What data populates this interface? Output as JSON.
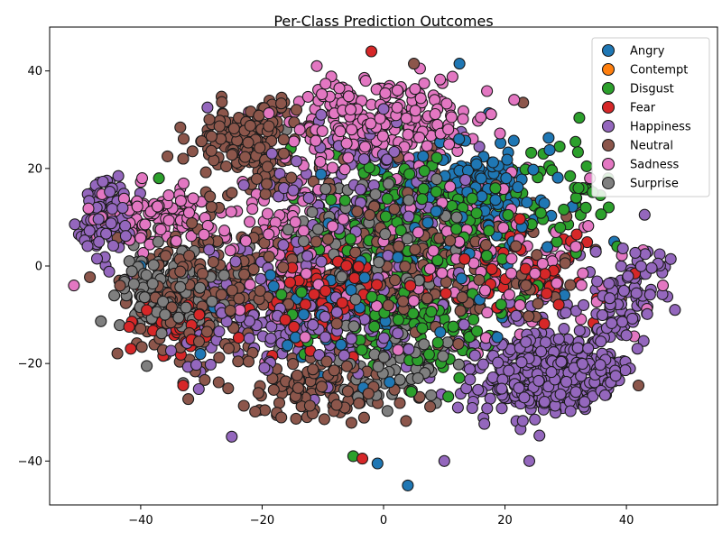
{
  "chart_data": {
    "type": "scatter",
    "title": "Per-Class Prediction Outcomes",
    "xlabel": "",
    "ylabel": "",
    "xlim": [
      -55,
      55
    ],
    "ylim": [
      -49,
      49
    ],
    "x_ticks": [
      -40,
      -20,
      0,
      20,
      40
    ],
    "y_ticks": [
      -40,
      -20,
      0,
      20,
      40
    ],
    "grid": false,
    "legend_position": "top-right",
    "marker_edge_color": "#1a1a1a",
    "series": [
      {
        "name": "Angry",
        "color": "#1f77b4",
        "clusters": [
          {
            "center": [
              15,
              15
            ],
            "spread": [
              10,
              10
            ],
            "count": 170
          },
          {
            "center": [
              -10,
              -10
            ],
            "spread": [
              10,
              8
            ],
            "count": 60
          },
          {
            "center": [
              0,
              0
            ],
            "spread": [
              25,
              20
            ],
            "count": 40
          }
        ],
        "points": [
          [
            12.5,
            41.5
          ],
          [
            4,
            -45
          ],
          [
            -1,
            -40.5
          ],
          [
            -7,
            32.5
          ],
          [
            38,
            5
          ],
          [
            -40,
            0
          ]
        ]
      },
      {
        "name": "Contempt",
        "color": "#ff7f0e",
        "clusters": [],
        "points": []
      },
      {
        "name": "Disgust",
        "color": "#2ca02c",
        "clusters": [
          {
            "center": [
              5,
              10
            ],
            "spread": [
              15,
              13
            ],
            "count": 220
          },
          {
            "center": [
              5,
              -12
            ],
            "spread": [
              15,
              10
            ],
            "count": 110
          },
          {
            "center": [
              30,
              15
            ],
            "spread": [
              8,
              10
            ],
            "count": 40
          }
        ],
        "points": [
          [
            -5,
            -39
          ],
          [
            29,
            24.5
          ],
          [
            37,
            18
          ],
          [
            -37,
            18
          ]
        ]
      },
      {
        "name": "Fear",
        "color": "#d62728",
        "clusters": [
          {
            "center": [
              -10,
              -5
            ],
            "spread": [
              9,
              8
            ],
            "count": 130
          },
          {
            "center": [
              -35,
              -12
            ],
            "spread": [
              7,
              6
            ],
            "count": 50
          },
          {
            "center": [
              25,
              -2
            ],
            "spread": [
              12,
              10
            ],
            "count": 70
          }
        ],
        "points": [
          [
            -2,
            44
          ],
          [
            -33,
            22
          ],
          [
            -3.5,
            -39.5
          ],
          [
            -33,
            -24.5
          ]
        ]
      },
      {
        "name": "Happiness",
        "color": "#9467bd",
        "clusters": [
          {
            "center": [
              28,
              -22
            ],
            "spread": [
              12,
              9
            ],
            "count": 450
          },
          {
            "center": [
              -46,
              10
            ],
            "spread": [
              5,
              7
            ],
            "count": 110
          },
          {
            "center": [
              -12,
              -10
            ],
            "spread": [
              20,
              14
            ],
            "count": 230
          },
          {
            "center": [
              -2,
              15
            ],
            "spread": [
              14,
              12
            ],
            "count": 150
          },
          {
            "center": [
              40,
              -5
            ],
            "spread": [
              6,
              8
            ],
            "count": 80
          }
        ],
        "points": [
          [
            -25,
            -35
          ],
          [
            10,
            -40
          ],
          [
            43,
            10.5
          ],
          [
            24,
            -40
          ],
          [
            -29,
            32.5
          ],
          [
            48,
            -9
          ]
        ]
      },
      {
        "name": "Neutral",
        "color": "#8c564b",
        "clusters": [
          {
            "center": [
              -22,
              25
            ],
            "spread": [
              9,
              9
            ],
            "count": 170
          },
          {
            "center": [
              -30,
              -5
            ],
            "spread": [
              12,
              12
            ],
            "count": 220
          },
          {
            "center": [
              5,
              0
            ],
            "spread": [
              20,
              15
            ],
            "count": 230
          },
          {
            "center": [
              -10,
              -25
            ],
            "spread": [
              12,
              6
            ],
            "count": 110
          }
        ],
        "points": [
          [
            5,
            41.5
          ],
          [
            -33,
            22
          ],
          [
            42,
            -24.5
          ],
          [
            23,
            33.5
          ]
        ]
      },
      {
        "name": "Sadness",
        "color": "#e377c2",
        "clusters": [
          {
            "center": [
              0,
              30
            ],
            "spread": [
              14,
              8
            ],
            "count": 240
          },
          {
            "center": [
              -38,
              10
            ],
            "spread": [
              9,
              6
            ],
            "count": 110
          },
          {
            "center": [
              15,
              0
            ],
            "spread": [
              20,
              15
            ],
            "count": 160
          },
          {
            "center": [
              -15,
              5
            ],
            "spread": [
              12,
              15
            ],
            "count": 110
          }
        ],
        "points": [
          [
            -11,
            41
          ],
          [
            6,
            40.5
          ],
          [
            34,
            18
          ],
          [
            46,
            -4
          ],
          [
            -51,
            -4
          ]
        ]
      },
      {
        "name": "Surprise",
        "color": "#7f7f7f",
        "clusters": [
          {
            "center": [
              -35,
              -5
            ],
            "spread": [
              9,
              8
            ],
            "count": 170
          },
          {
            "center": [
              -2,
              5
            ],
            "spread": [
              13,
              12
            ],
            "count": 110
          },
          {
            "center": [
              0,
              -20
            ],
            "spread": [
              12,
              8
            ],
            "count": 70
          }
        ],
        "points": [
          [
            -39,
            -20.5
          ],
          [
            -33,
            -24
          ],
          [
            -16,
            28
          ]
        ]
      }
    ]
  }
}
